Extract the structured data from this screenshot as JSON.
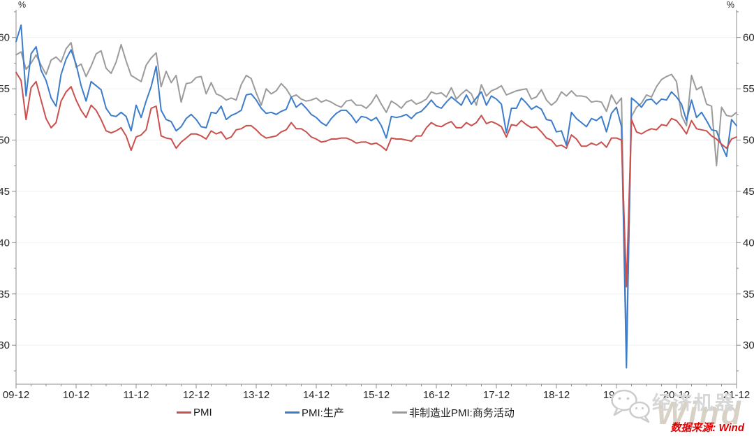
{
  "axis": {
    "y_unit_left": "%",
    "y_unit_right": "%",
    "text_color": "#262626",
    "axis_color": "#8c8c8c",
    "grid_color": "#f2f2f2"
  },
  "legend": [
    {
      "label": "PMI",
      "color": "#c9504c"
    },
    {
      "label": "PMI:生产",
      "color": "#3c7cca"
    },
    {
      "label": "非制造业PMI:商务活动",
      "color": "#9b9b9b"
    }
  ],
  "watermark": {
    "text": "经济机器",
    "brand": "Wind",
    "icon": "wechat-icon"
  },
  "footer": {
    "source_label": "数据来源: Wind"
  },
  "chart_data": {
    "type": "line",
    "title": "",
    "xlabel": "",
    "ylabel": "%",
    "x_unit": "year-month (monthly, Dec 2009 - Dec 2021)",
    "n_points": 145,
    "x_tick_labels": [
      "09-12",
      "10-12",
      "11-12",
      "12-12",
      "13-12",
      "14-12",
      "15-12",
      "16-12",
      "17-12",
      "18-12",
      "19-12",
      "20-12",
      "21-12"
    ],
    "x_major_every": 12,
    "x_minor_every": 3,
    "ylim": [
      26.2,
      62.7
    ],
    "y_ticks": [
      30,
      35,
      40,
      45,
      50,
      55,
      60
    ],
    "y_minor_step": 2.5,
    "grid": "horizontal-light",
    "legend_position": "bottom",
    "series": [
      {
        "name": "PMI",
        "color": "#c9504c",
        "values": [
          56.6,
          55.8,
          52.0,
          55.1,
          55.7,
          53.9,
          52.1,
          51.2,
          51.7,
          53.8,
          54.7,
          55.2,
          53.9,
          52.9,
          52.2,
          53.4,
          52.9,
          52.0,
          50.9,
          50.7,
          50.9,
          51.2,
          50.4,
          49.0,
          50.3,
          50.5,
          51.0,
          53.1,
          53.3,
          50.4,
          50.2,
          50.1,
          49.2,
          49.8,
          50.2,
          50.6,
          50.6,
          50.4,
          50.1,
          50.9,
          50.6,
          50.8,
          50.1,
          50.3,
          51.0,
          51.1,
          51.4,
          51.4,
          51.0,
          50.5,
          50.2,
          50.3,
          50.4,
          50.8,
          51.0,
          51.7,
          51.1,
          51.1,
          50.8,
          50.3,
          50.1,
          49.8,
          49.9,
          50.1,
          50.1,
          50.2,
          50.2,
          50.0,
          49.7,
          49.8,
          49.8,
          49.6,
          49.7,
          49.4,
          49.0,
          50.2,
          50.1,
          50.1,
          50.0,
          49.9,
          50.4,
          50.4,
          51.2,
          51.7,
          51.4,
          51.3,
          51.6,
          51.8,
          51.2,
          51.2,
          51.7,
          51.4,
          51.7,
          52.4,
          51.6,
          51.8,
          51.6,
          51.3,
          50.3,
          51.5,
          51.4,
          51.9,
          51.5,
          51.2,
          51.3,
          50.8,
          50.2,
          50.0,
          49.4,
          49.5,
          49.2,
          50.5,
          50.1,
          49.4,
          49.4,
          49.7,
          49.5,
          49.8,
          49.3,
          50.2,
          50.2,
          50.0,
          35.7,
          52.0,
          50.8,
          50.6,
          50.9,
          51.1,
          51.0,
          51.5,
          51.4,
          52.1,
          51.9,
          51.3,
          50.6,
          51.9,
          51.1,
          51.0,
          50.9,
          50.4,
          50.1,
          49.6,
          49.2,
          50.1,
          50.3
        ]
      },
      {
        "name": "PMI:生产",
        "color": "#3c7cca",
        "values": [
          59.6,
          61.2,
          54.3,
          58.4,
          59.1,
          56.8,
          55.8,
          54.1,
          53.3,
          56.4,
          57.9,
          58.8,
          57.4,
          55.3,
          53.8,
          55.7,
          55.3,
          54.9,
          53.1,
          52.4,
          52.3,
          52.7,
          52.3,
          50.9,
          53.4,
          52.2,
          53.8,
          55.2,
          57.2,
          52.9,
          52.0,
          51.8,
          50.9,
          51.3,
          52.1,
          52.5,
          52.0,
          51.3,
          51.2,
          52.7,
          52.6,
          53.3,
          52.0,
          52.4,
          52.6,
          52.9,
          54.4,
          54.5,
          53.9,
          53.1,
          52.6,
          52.7,
          52.5,
          52.8,
          53.0,
          54.2,
          53.2,
          53.6,
          53.1,
          52.5,
          52.2,
          51.7,
          51.4,
          52.1,
          52.6,
          52.9,
          52.9,
          52.4,
          51.7,
          52.3,
          52.2,
          51.9,
          52.2,
          51.4,
          50.2,
          52.3,
          52.2,
          52.3,
          52.5,
          52.1,
          52.6,
          52.8,
          53.3,
          53.9,
          53.3,
          53.1,
          53.7,
          54.2,
          53.8,
          53.4,
          54.4,
          53.5,
          54.1,
          54.7,
          53.4,
          54.3,
          54.0,
          53.5,
          50.7,
          53.1,
          53.1,
          54.1,
          53.6,
          53.0,
          53.3,
          53.0,
          52.0,
          51.9,
          50.8,
          50.9,
          49.5,
          52.7,
          52.1,
          51.7,
          51.3,
          52.1,
          51.9,
          52.3,
          50.8,
          52.6,
          53.2,
          51.3,
          27.8,
          54.1,
          53.7,
          53.2,
          53.9,
          54.0,
          53.5,
          54.0,
          53.9,
          54.7,
          54.2,
          53.5,
          51.9,
          53.9,
          52.2,
          52.7,
          51.9,
          51.0,
          50.9,
          49.5,
          48.4,
          52.0,
          51.4
        ]
      },
      {
        "name": "非制造业PMI:商务活动",
        "color": "#9b9b9b",
        "values": [
          58.3,
          58.6,
          56.9,
          57.5,
          58.3,
          57.3,
          56.4,
          57.8,
          58.1,
          57.6,
          58.9,
          59.5,
          57.1,
          57.4,
          56.2,
          57.2,
          58.4,
          58.7,
          57.0,
          56.5,
          57.6,
          59.3,
          57.7,
          56.3,
          56.0,
          55.7,
          57.3,
          58.0,
          58.5,
          55.2,
          56.7,
          55.6,
          56.3,
          53.7,
          55.5,
          55.6,
          56.1,
          56.2,
          54.5,
          55.6,
          54.5,
          54.3,
          53.9,
          54.1,
          53.9,
          55.4,
          56.3,
          56.0,
          54.6,
          53.4,
          55.0,
          54.5,
          54.8,
          55.5,
          55.0,
          54.2,
          54.4,
          54.0,
          53.8,
          53.9,
          54.1,
          53.7,
          53.9,
          53.7,
          53.4,
          53.2,
          53.8,
          53.9,
          53.4,
          53.4,
          53.1,
          53.6,
          54.4,
          53.5,
          52.7,
          53.8,
          53.5,
          53.1,
          53.7,
          53.9,
          53.5,
          53.7,
          54.0,
          54.7,
          54.5,
          54.6,
          54.2,
          55.1,
          54.0,
          54.5,
          54.9,
          54.5,
          53.4,
          55.4,
          54.3,
          54.8,
          55.0,
          55.3,
          54.4,
          54.6,
          54.8,
          54.9,
          55.0,
          54.0,
          54.2,
          54.9,
          53.9,
          53.4,
          53.8,
          54.7,
          54.3,
          54.8,
          54.3,
          54.3,
          54.2,
          53.7,
          53.8,
          53.7,
          52.8,
          54.4,
          53.5,
          54.1,
          29.6,
          52.3,
          53.2,
          53.6,
          54.4,
          54.2,
          55.2,
          55.9,
          56.2,
          56.4,
          55.7,
          52.4,
          51.4,
          56.3,
          54.9,
          55.2,
          53.5,
          53.3,
          47.5,
          53.2,
          52.4,
          52.3,
          52.7
        ]
      }
    ]
  }
}
